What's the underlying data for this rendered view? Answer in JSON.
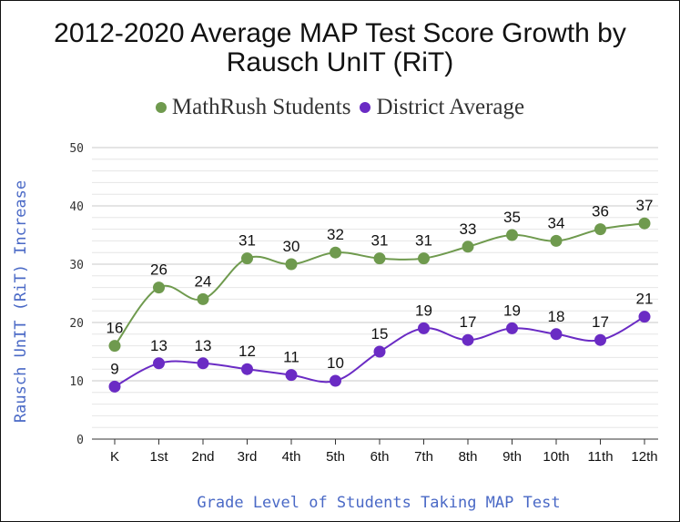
{
  "chart_data": {
    "type": "line",
    "title": "2012-2020 Average MAP Test Score Growth by Rausch UnIT (RiT)",
    "title_lines": [
      "2012-2020 Average MAP Test Score Growth by",
      "Rausch UnIT (RiT)"
    ],
    "xlabel": "Grade Level of Students Taking MAP Test",
    "ylabel": "Rausch UnIT (RiT) Increase",
    "categories": [
      "K",
      "1st",
      "2nd",
      "3rd",
      "4th",
      "5th",
      "6th",
      "7th",
      "8th",
      "9th",
      "10th",
      "11th",
      "12th"
    ],
    "series": [
      {
        "name": "MathRush Students",
        "color": "#6f9a4e",
        "values": [
          16,
          26,
          24,
          31,
          30,
          32,
          31,
          31,
          33,
          35,
          34,
          36,
          37
        ]
      },
      {
        "name": "District Average",
        "color": "#6a2bc4",
        "values": [
          9,
          13,
          13,
          12,
          11,
          10,
          15,
          19,
          17,
          19,
          18,
          17,
          21
        ]
      }
    ],
    "ylim": [
      0,
      50
    ],
    "yticks": [
      0,
      10,
      20,
      30,
      40,
      50
    ],
    "grid": true,
    "smooth": true,
    "data_labels": true,
    "legend_position": "top-center"
  }
}
